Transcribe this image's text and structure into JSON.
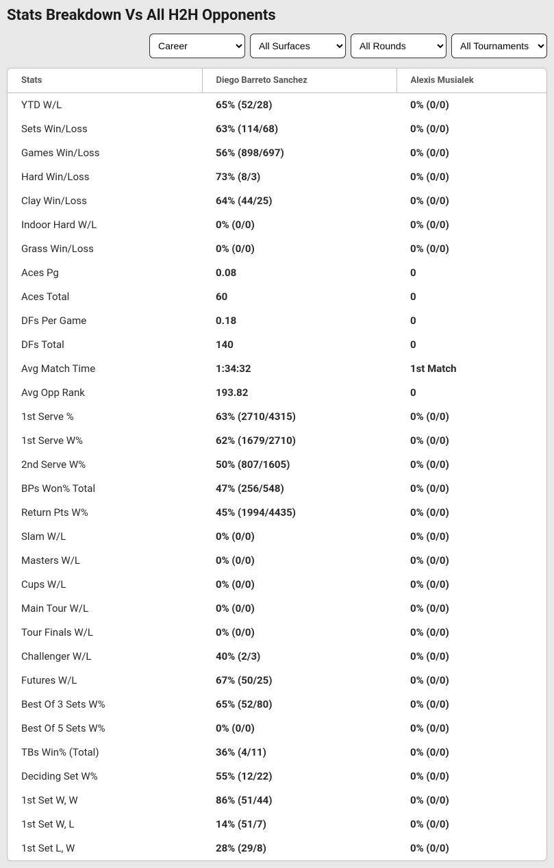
{
  "title": "Stats Breakdown Vs All H2H Opponents",
  "filters": {
    "period": "Career",
    "surface": "All Surfaces",
    "round": "All Rounds",
    "tournament": "All Tournaments"
  },
  "columns": {
    "stat": "Stats",
    "p1": "Diego Barreto Sanchez",
    "p2": "Alexis Musialek"
  },
  "rows": [
    {
      "stat": "YTD W/L",
      "p1": "65% (52/28)",
      "p2": "0% (0/0)"
    },
    {
      "stat": "Sets Win/Loss",
      "p1": "63% (114/68)",
      "p2": "0% (0/0)"
    },
    {
      "stat": "Games Win/Loss",
      "p1": "56% (898/697)",
      "p2": "0% (0/0)"
    },
    {
      "stat": "Hard Win/Loss",
      "p1": "73% (8/3)",
      "p2": "0% (0/0)"
    },
    {
      "stat": "Clay Win/Loss",
      "p1": "64% (44/25)",
      "p2": "0% (0/0)"
    },
    {
      "stat": "Indoor Hard W/L",
      "p1": "0% (0/0)",
      "p2": "0% (0/0)"
    },
    {
      "stat": "Grass Win/Loss",
      "p1": "0% (0/0)",
      "p2": "0% (0/0)"
    },
    {
      "stat": "Aces Pg",
      "p1": "0.08",
      "p2": "0"
    },
    {
      "stat": "Aces Total",
      "p1": "60",
      "p2": "0"
    },
    {
      "stat": "DFs Per Game",
      "p1": "0.18",
      "p2": "0"
    },
    {
      "stat": "DFs Total",
      "p1": "140",
      "p2": "0"
    },
    {
      "stat": "Avg Match Time",
      "p1": "1:34:32",
      "p2": "1st Match"
    },
    {
      "stat": "Avg Opp Rank",
      "p1": "193.82",
      "p2": "0"
    },
    {
      "stat": "1st Serve %",
      "p1": "63% (2710/4315)",
      "p2": "0% (0/0)"
    },
    {
      "stat": "1st Serve W%",
      "p1": "62% (1679/2710)",
      "p2": "0% (0/0)"
    },
    {
      "stat": "2nd Serve W%",
      "p1": "50% (807/1605)",
      "p2": "0% (0/0)"
    },
    {
      "stat": "BPs Won% Total",
      "p1": "47% (256/548)",
      "p2": "0% (0/0)"
    },
    {
      "stat": "Return Pts W%",
      "p1": "45% (1994/4435)",
      "p2": "0% (0/0)"
    },
    {
      "stat": "Slam W/L",
      "p1": "0% (0/0)",
      "p2": "0% (0/0)"
    },
    {
      "stat": "Masters W/L",
      "p1": "0% (0/0)",
      "p2": "0% (0/0)"
    },
    {
      "stat": "Cups W/L",
      "p1": "0% (0/0)",
      "p2": "0% (0/0)"
    },
    {
      "stat": "Main Tour W/L",
      "p1": "0% (0/0)",
      "p2": "0% (0/0)"
    },
    {
      "stat": "Tour Finals W/L",
      "p1": "0% (0/0)",
      "p2": "0% (0/0)"
    },
    {
      "stat": "Challenger W/L",
      "p1": "40% (2/3)",
      "p2": "0% (0/0)"
    },
    {
      "stat": "Futures W/L",
      "p1": "67% (50/25)",
      "p2": "0% (0/0)"
    },
    {
      "stat": "Best Of 3 Sets W%",
      "p1": "65% (52/80)",
      "p2": "0% (0/0)"
    },
    {
      "stat": "Best Of 5 Sets W%",
      "p1": "0% (0/0)",
      "p2": "0% (0/0)"
    },
    {
      "stat": "TBs Win% (Total)",
      "p1": "36% (4/11)",
      "p2": "0% (0/0)"
    },
    {
      "stat": "Deciding Set W%",
      "p1": "55% (12/22)",
      "p2": "0% (0/0)"
    },
    {
      "stat": "1st Set W, W",
      "p1": "86% (51/44)",
      "p2": "0% (0/0)"
    },
    {
      "stat": "1st Set W, L",
      "p1": "14% (51/7)",
      "p2": "0% (0/0)"
    },
    {
      "stat": "1st Set L, W",
      "p1": "28% (29/8)",
      "p2": "0% (0/0)"
    }
  ]
}
